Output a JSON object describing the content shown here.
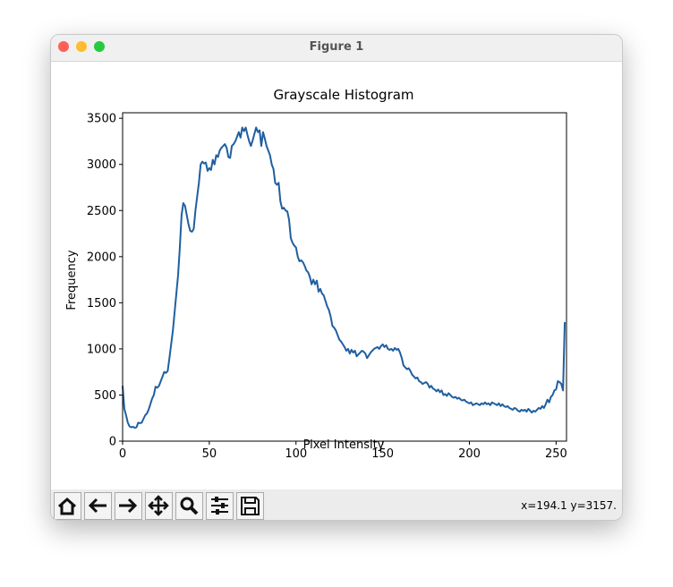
{
  "window_title": "Figure 1",
  "status": "x=194.1 y=3157.",
  "chart_data": {
    "type": "line",
    "title": "Grayscale Histogram",
    "x_label": "Pixel Intensity",
    "y_label": "Frequency",
    "x": [
      0,
      1,
      2,
      3,
      4,
      5,
      6,
      7,
      8,
      9,
      10,
      11,
      12,
      13,
      14,
      15,
      16,
      17,
      18,
      19,
      20,
      21,
      22,
      23,
      24,
      25,
      26,
      27,
      28,
      29,
      30,
      31,
      32,
      33,
      34,
      35,
      36,
      37,
      38,
      39,
      40,
      41,
      42,
      43,
      44,
      45,
      46,
      47,
      48,
      49,
      50,
      51,
      52,
      53,
      54,
      55,
      56,
      57,
      58,
      59,
      60,
      61,
      62,
      63,
      64,
      65,
      66,
      67,
      68,
      69,
      70,
      71,
      72,
      73,
      74,
      75,
      76,
      77,
      78,
      79,
      80,
      81,
      82,
      83,
      84,
      85,
      86,
      87,
      88,
      89,
      90,
      91,
      92,
      93,
      94,
      95,
      96,
      97,
      98,
      99,
      100,
      101,
      102,
      103,
      104,
      105,
      106,
      107,
      108,
      109,
      110,
      111,
      112,
      113,
      114,
      115,
      116,
      117,
      118,
      119,
      120,
      121,
      122,
      123,
      124,
      125,
      126,
      127,
      128,
      129,
      130,
      131,
      132,
      133,
      134,
      135,
      136,
      137,
      138,
      139,
      140,
      141,
      142,
      143,
      144,
      145,
      146,
      147,
      148,
      149,
      150,
      151,
      152,
      153,
      154,
      155,
      156,
      157,
      158,
      159,
      160,
      161,
      162,
      163,
      164,
      165,
      166,
      167,
      168,
      169,
      170,
      171,
      172,
      173,
      174,
      175,
      176,
      177,
      178,
      179,
      180,
      181,
      182,
      183,
      184,
      185,
      186,
      187,
      188,
      189,
      190,
      191,
      192,
      193,
      194,
      195,
      196,
      197,
      198,
      199,
      200,
      201,
      202,
      203,
      204,
      205,
      206,
      207,
      208,
      209,
      210,
      211,
      212,
      213,
      214,
      215,
      216,
      217,
      218,
      219,
      220,
      221,
      222,
      223,
      224,
      225,
      226,
      227,
      228,
      229,
      230,
      231,
      232,
      233,
      234,
      235,
      236,
      237,
      238,
      239,
      240,
      241,
      242,
      243,
      244,
      245,
      246,
      247,
      248,
      249,
      250,
      251,
      252,
      253,
      254,
      255
    ],
    "values": [
      600,
      350,
      280,
      200,
      160,
      150,
      155,
      145,
      150,
      200,
      195,
      200,
      240,
      280,
      300,
      340,
      400,
      460,
      500,
      590,
      580,
      600,
      650,
      700,
      750,
      740,
      760,
      900,
      1050,
      1200,
      1400,
      1600,
      1800,
      2100,
      2450,
      2580,
      2550,
      2450,
      2350,
      2280,
      2270,
      2300,
      2500,
      2650,
      2800,
      3000,
      3030,
      3010,
      3020,
      2930,
      2960,
      2940,
      3050,
      3000,
      3100,
      3080,
      3150,
      3180,
      3200,
      3220,
      3180,
      3080,
      3070,
      3200,
      3220,
      3250,
      3300,
      3350,
      3290,
      3400,
      3360,
      3400,
      3320,
      3250,
      3200,
      3260,
      3330,
      3400,
      3350,
      3370,
      3200,
      3350,
      3280,
      3200,
      3150,
      3100,
      3000,
      2950,
      2800,
      2780,
      2800,
      2600,
      2520,
      2530,
      2500,
      2490,
      2400,
      2200,
      2150,
      2120,
      2100,
      2000,
      1950,
      1960,
      1940,
      1900,
      1850,
      1830,
      1780,
      1700,
      1750,
      1700,
      1740,
      1620,
      1650,
      1600,
      1580,
      1520,
      1460,
      1420,
      1350,
      1250,
      1230,
      1200,
      1150,
      1100,
      1080,
      1050,
      1020,
      980,
      1000,
      950,
      990,
      960,
      980,
      920,
      940,
      960,
      980,
      970,
      950,
      900,
      930,
      960,
      980,
      1000,
      1010,
      1020,
      1000,
      1030,
      1050,
      1020,
      1040,
      1000,
      990,
      1000,
      980,
      1010,
      990,
      1000,
      960,
      900,
      820,
      800,
      780,
      790,
      760,
      720,
      700,
      680,
      690,
      650,
      640,
      620,
      630,
      640,
      620,
      580,
      600,
      570,
      560,
      540,
      560,
      530,
      550,
      500,
      510,
      490,
      520,
      500,
      480,
      470,
      480,
      460,
      470,
      450,
      440,
      450,
      430,
      420,
      410,
      420,
      390,
      400,
      410,
      400,
      390,
      410,
      400,
      420,
      400,
      410,
      390,
      420,
      410,
      400,
      390,
      410,
      380,
      400,
      380,
      370,
      380,
      360,
      350,
      340,
      360,
      350,
      330,
      320,
      340,
      330,
      340,
      320,
      350,
      330,
      310,
      330,
      320,
      340,
      360,
      350,
      380,
      360,
      400,
      450,
      420,
      480,
      500,
      550,
      560,
      650,
      640,
      620,
      550,
      1290
    ],
    "color": "#1f5fa0",
    "xlim": [
      0,
      256
    ],
    "ylim": [
      0,
      3560
    ],
    "xticks": [
      0,
      50,
      100,
      150,
      200,
      250
    ],
    "yticks": [
      0,
      500,
      1000,
      1500,
      2000,
      2500,
      3000,
      3500
    ]
  }
}
